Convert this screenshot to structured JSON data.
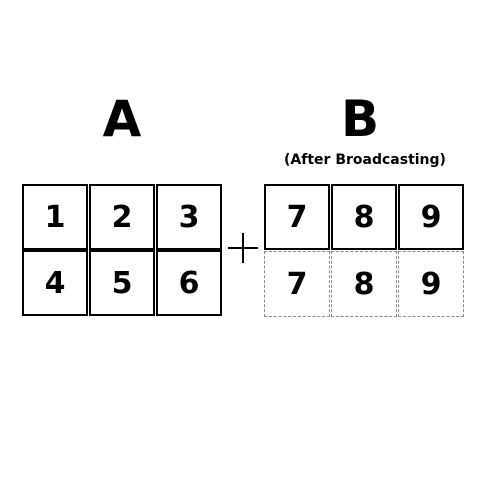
{
  "matrix_a": {
    "label": "A",
    "rows": [
      [
        "1",
        "2",
        "3"
      ],
      [
        "4",
        "5",
        "6"
      ]
    ]
  },
  "matrix_b": {
    "label": "B",
    "subtitle": "(After Broadcasting)",
    "rows": [
      [
        "7",
        "8",
        "9"
      ],
      [
        "7",
        "8",
        "9"
      ]
    ],
    "original_row_count": 1
  },
  "operator": "plus",
  "colors": {
    "text": "#000000",
    "border": "#000000",
    "broadcast_border": "#8a8a8a",
    "background": "#ffffff"
  }
}
